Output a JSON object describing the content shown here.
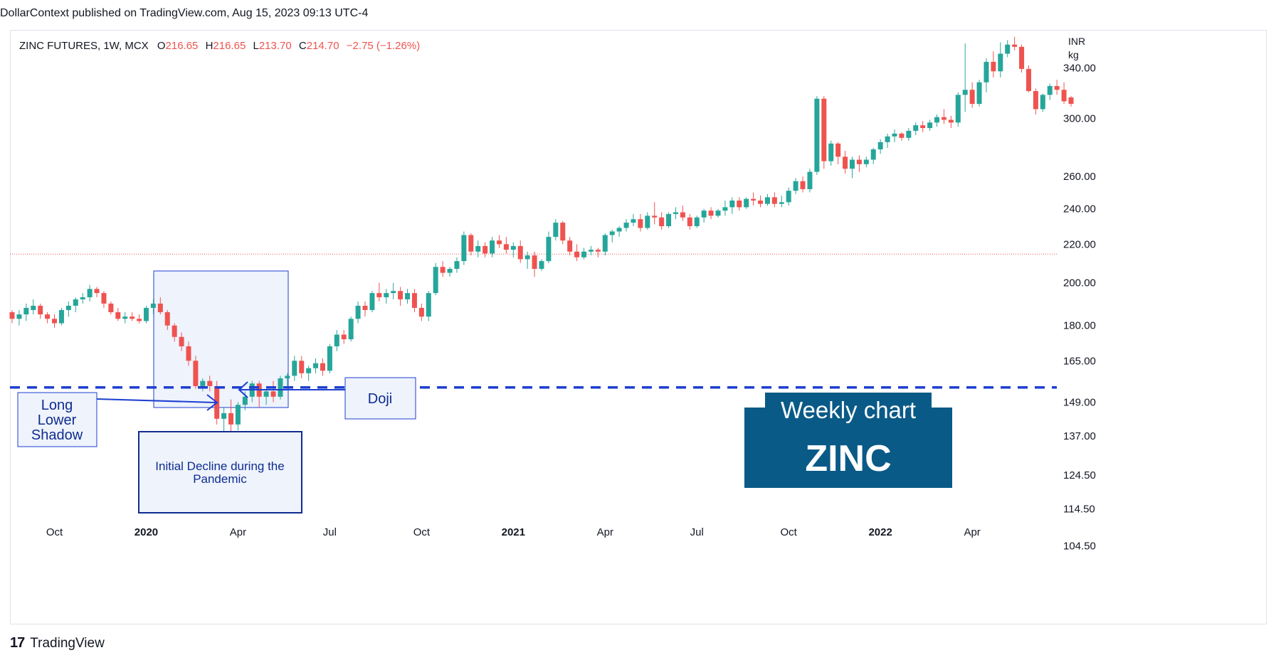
{
  "header": {
    "text": "DollarContext published on TradingView.com, Aug 15, 2023 09:13 UTC-4"
  },
  "legend": {
    "symbol": "ZINC FUTURES, 1W, MCX",
    "o_label": "O",
    "o": "216.65",
    "h_label": "H",
    "h": "216.65",
    "l_label": "L",
    "l": "213.70",
    "c_label": "C",
    "c": "214.70",
    "change": "−2.75 (−1.26%)"
  },
  "axis_unit": {
    "line1": "INR",
    "line2": "kg"
  },
  "annotations": {
    "long_lower_shadow": [
      "Long",
      "Lower",
      "Shadow"
    ],
    "doji": "Doji",
    "initial_decline": [
      "Initial Decline during the",
      "Pandemic"
    ],
    "badge_line1": "Weekly chart",
    "badge_line2": "ZINC"
  },
  "footer": {
    "brand": "TradingView"
  },
  "colors": {
    "up": "#26a69a",
    "down": "#ef5350",
    "support": "#1e3fcf",
    "badge": "#0a5a87",
    "box_fill": "#eef3fc",
    "box_border": "#1e3fcf",
    "dark_box_border": "#0f2c8f"
  },
  "chart_data": {
    "type": "candlestick",
    "scale": "log",
    "ylim": [
      97,
      372
    ],
    "y_ticks": [
      340,
      300,
      260,
      240,
      220,
      200,
      180,
      165,
      149,
      137,
      124.5,
      114.5,
      104.5
    ],
    "y_tick_labels": [
      "340.00",
      "300.00",
      "260.00",
      "240.00",
      "220.00",
      "200.00",
      "180.00",
      "165.00",
      "149.00",
      "137.00",
      "124.50",
      "114.50",
      "104.50"
    ],
    "x_labels": [
      {
        "text": "Oct",
        "week": 6,
        "bold": false
      },
      {
        "text": "2020",
        "week": 19,
        "bold": true
      },
      {
        "text": "Apr",
        "week": 32,
        "bold": false
      },
      {
        "text": "Jul",
        "week": 45,
        "bold": false
      },
      {
        "text": "Oct",
        "week": 58,
        "bold": false
      },
      {
        "text": "2021",
        "week": 71,
        "bold": true
      },
      {
        "text": "Apr",
        "week": 84,
        "bold": false
      },
      {
        "text": "Jul",
        "week": 97,
        "bold": false
      },
      {
        "text": "Oct",
        "week": 110,
        "bold": false
      },
      {
        "text": "2022",
        "week": 123,
        "bold": true
      },
      {
        "text": "Apr",
        "week": 136,
        "bold": false
      }
    ],
    "support_level": 154.5,
    "last_price_line": 214.7,
    "candles": [
      [
        186,
        187,
        181,
        183
      ],
      [
        183,
        187,
        180,
        185
      ],
      [
        185,
        190,
        182,
        188
      ],
      [
        187,
        192,
        185,
        189
      ],
      [
        189,
        190,
        183,
        185
      ],
      [
        185,
        186,
        181,
        183
      ],
      [
        183,
        185,
        179,
        181
      ],
      [
        181,
        188,
        180,
        187
      ],
      [
        187,
        191,
        184,
        189
      ],
      [
        189,
        193,
        186,
        192
      ],
      [
        192,
        195,
        190,
        193
      ],
      [
        193,
        199,
        191,
        197
      ],
      [
        197,
        198,
        193,
        195
      ],
      [
        195,
        196,
        188,
        190
      ],
      [
        190,
        191,
        185,
        186
      ],
      [
        186,
        188,
        182,
        183
      ],
      [
        183,
        186,
        181,
        184
      ],
      [
        184,
        186,
        182,
        183
      ],
      [
        183,
        185,
        181,
        182
      ],
      [
        182,
        189,
        181,
        188
      ],
      [
        188,
        192,
        185,
        190
      ],
      [
        190,
        193,
        185,
        186
      ],
      [
        186,
        187,
        178,
        180
      ],
      [
        180,
        181,
        173,
        175
      ],
      [
        175,
        177,
        169,
        171
      ],
      [
        171,
        173,
        163,
        165
      ],
      [
        165,
        167,
        154,
        155
      ],
      [
        155,
        158,
        153,
        157
      ],
      [
        157,
        159,
        153,
        155
      ],
      [
        155,
        157,
        141,
        143
      ],
      [
        143,
        147,
        132,
        145
      ],
      [
        145,
        150,
        138,
        141
      ],
      [
        141,
        149,
        139,
        148
      ],
      [
        148,
        153,
        146,
        151
      ],
      [
        151,
        157,
        149,
        156
      ],
      [
        156,
        157,
        147,
        151
      ],
      [
        151,
        154,
        148,
        153
      ],
      [
        153,
        157,
        149,
        151
      ],
      [
        151,
        159,
        150,
        158
      ],
      [
        158,
        160,
        155,
        159
      ],
      [
        159,
        167,
        157,
        165
      ],
      [
        165,
        167,
        158,
        160
      ],
      [
        160,
        163,
        157,
        162
      ],
      [
        162,
        166,
        160,
        164
      ],
      [
        164,
        166,
        159,
        161
      ],
      [
        161,
        172,
        160,
        171
      ],
      [
        171,
        178,
        169,
        176
      ],
      [
        176,
        178,
        172,
        174
      ],
      [
        174,
        184,
        173,
        183
      ],
      [
        183,
        191,
        181,
        189
      ],
      [
        189,
        191,
        184,
        187
      ],
      [
        187,
        196,
        186,
        195
      ],
      [
        195,
        200,
        191,
        193
      ],
      [
        193,
        197,
        190,
        195
      ],
      [
        195,
        200,
        192,
        196
      ],
      [
        196,
        198,
        189,
        192
      ],
      [
        192,
        197,
        190,
        195
      ],
      [
        195,
        197,
        186,
        188
      ],
      [
        188,
        190,
        182,
        184
      ],
      [
        184,
        196,
        182,
        195
      ],
      [
        195,
        210,
        194,
        208
      ],
      [
        208,
        211,
        203,
        205
      ],
      [
        205,
        208,
        203,
        207
      ],
      [
        207,
        213,
        205,
        211
      ],
      [
        211,
        227,
        209,
        225
      ],
      [
        225,
        226,
        214,
        216
      ],
      [
        216,
        222,
        213,
        219
      ],
      [
        219,
        221,
        213,
        215
      ],
      [
        215,
        224,
        213,
        222
      ],
      [
        222,
        225,
        218,
        220
      ],
      [
        220,
        224,
        215,
        217
      ],
      [
        217,
        221,
        213,
        219
      ],
      [
        219,
        222,
        210,
        212
      ],
      [
        212,
        216,
        207,
        214
      ],
      [
        214,
        216,
        203,
        207
      ],
      [
        207,
        212,
        206,
        211
      ],
      [
        211,
        227,
        210,
        224
      ],
      [
        224,
        234,
        222,
        232
      ],
      [
        232,
        233,
        220,
        222
      ],
      [
        222,
        224,
        214,
        216
      ],
      [
        216,
        220,
        211,
        213
      ],
      [
        213,
        218,
        212,
        216
      ],
      [
        216,
        219,
        214,
        217
      ],
      [
        217,
        218,
        213,
        216
      ],
      [
        216,
        226,
        214,
        225
      ],
      [
        225,
        228,
        221,
        227
      ],
      [
        227,
        230,
        224,
        229
      ],
      [
        229,
        234,
        227,
        232
      ],
      [
        232,
        237,
        230,
        234
      ],
      [
        234,
        237,
        227,
        229
      ],
      [
        229,
        238,
        228,
        236
      ],
      [
        236,
        244,
        231,
        235
      ],
      [
        235,
        238,
        228,
        230
      ],
      [
        230,
        238,
        229,
        237
      ],
      [
        237,
        241,
        234,
        238
      ],
      [
        238,
        242,
        233,
        235
      ],
      [
        235,
        237,
        228,
        230
      ],
      [
        230,
        236,
        229,
        235
      ],
      [
        235,
        240,
        232,
        239
      ],
      [
        239,
        241,
        234,
        236
      ],
      [
        236,
        240,
        235,
        239
      ],
      [
        239,
        245,
        236,
        241
      ],
      [
        241,
        247,
        237,
        245
      ],
      [
        245,
        247,
        239,
        241
      ],
      [
        241,
        247,
        240,
        246
      ],
      [
        246,
        250,
        242,
        245
      ],
      [
        245,
        248,
        241,
        243
      ],
      [
        243,
        249,
        242,
        247
      ],
      [
        247,
        250,
        241,
        243
      ],
      [
        243,
        248,
        241,
        244
      ],
      [
        244,
        253,
        242,
        251
      ],
      [
        251,
        259,
        249,
        257
      ],
      [
        257,
        260,
        250,
        252
      ],
      [
        252,
        265,
        250,
        263
      ],
      [
        263,
        317,
        261,
        315
      ],
      [
        315,
        317,
        265,
        270
      ],
      [
        270,
        284,
        267,
        282
      ],
      [
        282,
        283,
        268,
        273
      ],
      [
        273,
        277,
        262,
        265
      ],
      [
        265,
        273,
        259,
        271
      ],
      [
        271,
        274,
        263,
        268
      ],
      [
        268,
        273,
        266,
        271
      ],
      [
        271,
        279,
        268,
        278
      ],
      [
        278,
        285,
        275,
        283
      ],
      [
        283,
        289,
        279,
        287
      ],
      [
        287,
        292,
        283,
        289
      ],
      [
        289,
        290,
        284,
        286
      ],
      [
        286,
        293,
        284,
        291
      ],
      [
        291,
        297,
        288,
        295
      ],
      [
        295,
        298,
        290,
        293
      ],
      [
        293,
        299,
        291,
        297
      ],
      [
        297,
        303,
        294,
        301
      ],
      [
        301,
        307,
        296,
        299
      ],
      [
        299,
        302,
        293,
        297
      ],
      [
        297,
        320,
        294,
        318
      ],
      [
        318,
        361,
        305,
        322
      ],
      [
        322,
        328,
        308,
        311
      ],
      [
        311,
        330,
        309,
        328
      ],
      [
        328,
        348,
        320,
        345
      ],
      [
        345,
        354,
        332,
        337
      ],
      [
        337,
        362,
        332,
        352
      ],
      [
        352,
        364,
        349,
        360
      ],
      [
        360,
        367,
        355,
        358
      ],
      [
        358,
        360,
        336,
        339
      ],
      [
        339,
        342,
        320,
        321
      ],
      [
        321,
        323,
        303,
        307
      ],
      [
        307,
        319,
        305,
        318
      ],
      [
        318,
        327,
        314,
        325
      ],
      [
        325,
        330,
        318,
        322
      ],
      [
        322,
        328,
        311,
        313
      ],
      [
        316,
        317,
        309,
        311
      ]
    ]
  }
}
